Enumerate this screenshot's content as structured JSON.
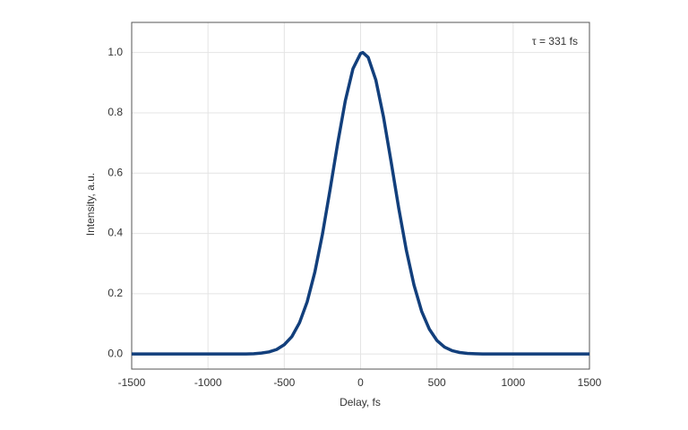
{
  "chart_data": {
    "type": "line",
    "x_label": "Delay, fs",
    "y_label": "Intensity, a.u.",
    "annotation": "τ = 331 fs",
    "series": [
      {
        "color": "#123f7c",
        "x": [
          -1500,
          -1000,
          -800,
          -750,
          -700,
          -650,
          -600,
          -550,
          -500,
          -450,
          -400,
          -350,
          -300,
          -250,
          -200,
          -150,
          -100,
          -50,
          0,
          15,
          50,
          100,
          150,
          200,
          250,
          300,
          350,
          400,
          450,
          500,
          550,
          600,
          650,
          700,
          750,
          800,
          1000,
          1500
        ],
        "values": [
          0,
          0,
          0,
          0,
          0.001,
          0.003,
          0.007,
          0.015,
          0.031,
          0.058,
          0.104,
          0.173,
          0.271,
          0.397,
          0.545,
          0.699,
          0.84,
          0.946,
          0.997,
          1.0,
          0.984,
          0.909,
          0.787,
          0.638,
          0.484,
          0.344,
          0.229,
          0.142,
          0.083,
          0.045,
          0.023,
          0.011,
          0.005,
          0.002,
          0.001,
          0,
          0,
          0
        ]
      }
    ],
    "xlim": [
      -1500,
      1500
    ],
    "xticks": [
      -1500,
      -1000,
      -500,
      0,
      500,
      1000,
      1500
    ],
    "ylim": [
      -0.05,
      1.1
    ],
    "yticks": [
      {
        "value": 0,
        "label": "0.0"
      },
      0.2,
      0.4,
      0.6,
      0.8,
      {
        "value": 1,
        "label": "1.0"
      }
    ],
    "grid": true
  }
}
